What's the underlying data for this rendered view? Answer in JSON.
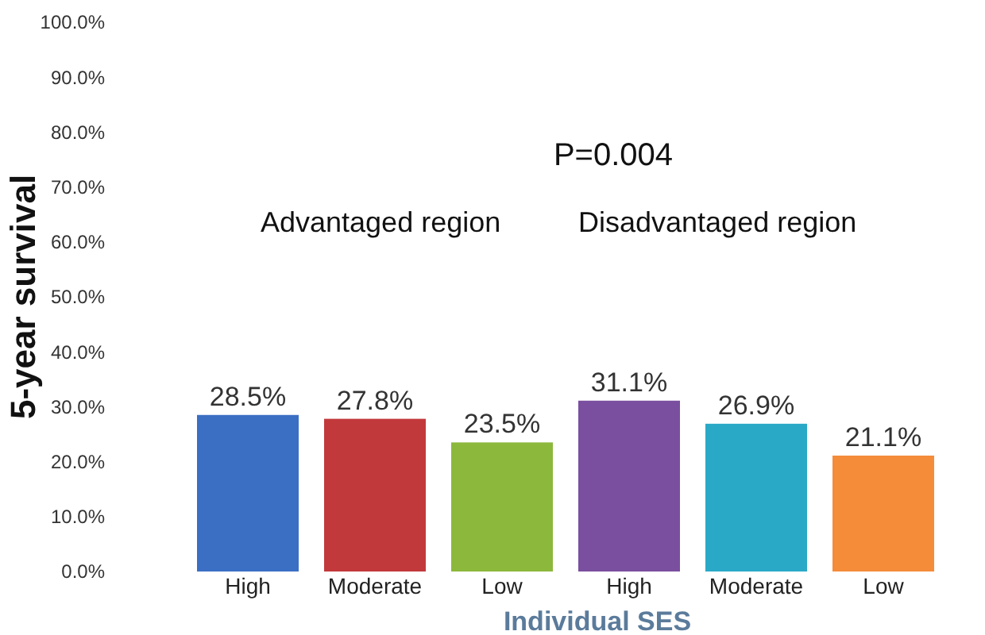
{
  "chart_data": {
    "type": "bar",
    "xlabel": "Individual SES",
    "ylabel": "5-year survival",
    "annotations": [
      "P=0.004",
      "Advantaged region",
      "Disadvantaged region"
    ],
    "categories": [
      "High",
      "Moderate",
      "Low",
      "High",
      "Moderate",
      "Low"
    ],
    "values": [
      28.5,
      27.8,
      23.5,
      31.1,
      26.9,
      21.1
    ],
    "value_labels": [
      "28.5%",
      "27.8%",
      "23.5%",
      "31.1%",
      "26.9%",
      "21.1%"
    ],
    "colors": [
      "#3b6fc4",
      "#c2393c",
      "#8cb83c",
      "#7a4f9f",
      "#2aa9c7",
      "#f58c3a"
    ],
    "ylim": [
      0,
      100
    ],
    "yticks": [
      {
        "value": 0,
        "label": "0.0%"
      },
      {
        "value": 10,
        "label": "10.0%"
      },
      {
        "value": 20,
        "label": "20.0%"
      },
      {
        "value": 30,
        "label": "30.0%"
      },
      {
        "value": 40,
        "label": "40.0%"
      },
      {
        "value": 50,
        "label": "50.0%"
      },
      {
        "value": 60,
        "label": "60.0%"
      },
      {
        "value": 70,
        "label": "70.0%"
      },
      {
        "value": 80,
        "label": "80.0%"
      },
      {
        "value": 90,
        "label": "90.0%"
      },
      {
        "value": 100,
        "label": "100.0%"
      }
    ],
    "grid": false
  }
}
